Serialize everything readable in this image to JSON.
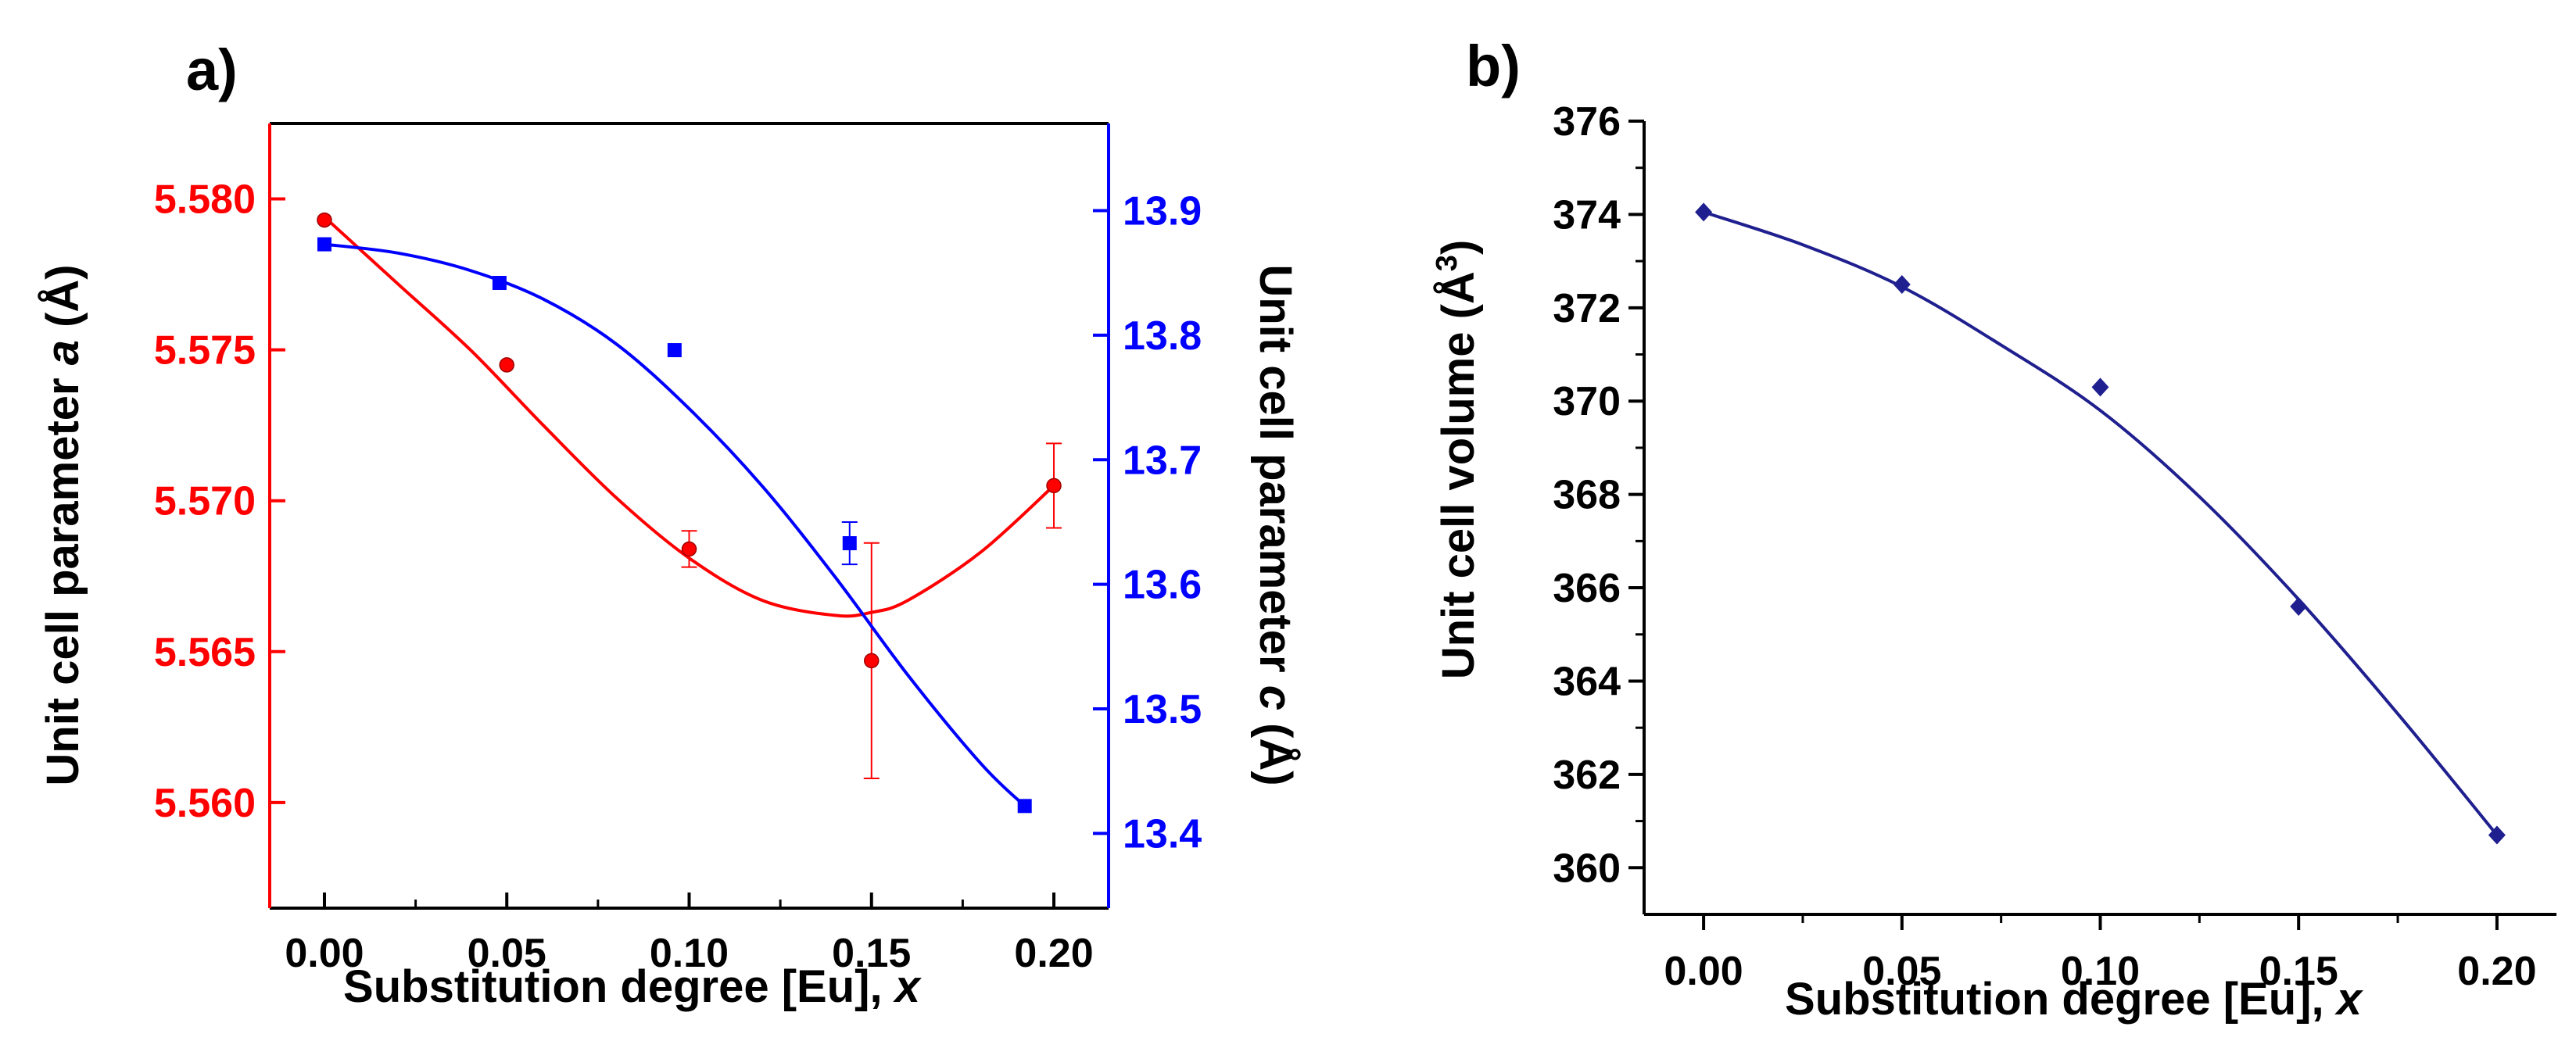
{
  "chart_data": [
    {
      "type": "line",
      "panel_label": "a)",
      "title": "",
      "xlabel": "Substitution degree [Eu], ",
      "xlabel_var": "x",
      "ylabel_left": {
        "pre": "Unit cell parameter ",
        "var": "a",
        "post": " (Å)"
      },
      "ylabel_right": {
        "pre": "Unit cell parameter ",
        "var": "c",
        "post": " (Å)"
      },
      "xlim": [
        -0.015,
        0.215
      ],
      "xticks": [
        "0.00",
        "0.05",
        "0.10",
        "0.15",
        "0.20"
      ],
      "ylim_left": [
        5.5565,
        5.5825
      ],
      "yticks_left": [
        "5.560",
        "5.565",
        "5.570",
        "5.575",
        "5.580"
      ],
      "ylim_right": [
        13.34,
        13.97
      ],
      "yticks_right": [
        "13.4",
        "13.5",
        "13.6",
        "13.7",
        "13.8",
        "13.9"
      ],
      "series": [
        {
          "name": "a",
          "axis": "left",
          "color": "#ff0000",
          "marker": "circle",
          "x": [
            0.0,
            0.05,
            0.1,
            0.15,
            0.2
          ],
          "values": [
            5.5793,
            5.5745,
            5.5684,
            5.5647,
            5.5705
          ],
          "errors": [
            0.0,
            0.0,
            0.0006,
            0.0039,
            0.0014
          ],
          "fit_x": [
            0.0,
            0.02,
            0.04,
            0.06,
            0.08,
            0.1,
            0.12,
            0.14,
            0.15,
            0.16,
            0.18,
            0.2
          ],
          "fit_y": [
            5.5794,
            5.5772,
            5.575,
            5.5725,
            5.5701,
            5.5681,
            5.5667,
            5.5662,
            5.5663,
            5.5667,
            5.5683,
            5.5705
          ]
        },
        {
          "name": "c",
          "axis": "right",
          "color": "#0000ff",
          "marker": "square",
          "x": [
            0.0,
            0.048,
            0.096,
            0.144,
            0.192
          ],
          "values": [
            13.873,
            13.842,
            13.788,
            13.633,
            13.422
          ],
          "errors": [
            0.0,
            0.0,
            0.0,
            0.017,
            0.0
          ],
          "fit_x": [
            0.0,
            0.02,
            0.04,
            0.06,
            0.08,
            0.1,
            0.12,
            0.14,
            0.16,
            0.18,
            0.192
          ],
          "fit_y": [
            13.873,
            13.866,
            13.852,
            13.829,
            13.793,
            13.741,
            13.679,
            13.606,
            13.527,
            13.456,
            13.422
          ]
        }
      ]
    },
    {
      "type": "line",
      "panel_label": "b)",
      "title": "",
      "xlabel": "Substitution degree [Eu], ",
      "xlabel_var": "x",
      "ylabel": {
        "pre": "Unit cell volume (Å",
        "sup": "3",
        "post": ")"
      },
      "xlim": [
        -0.015,
        0.215
      ],
      "xticks": [
        "0.00",
        "0.05",
        "0.10",
        "0.15",
        "0.20"
      ],
      "ylim": [
        359,
        376
      ],
      "yticks": [
        "360",
        "362",
        "364",
        "366",
        "368",
        "370",
        "372",
        "374",
        "376"
      ],
      "series": [
        {
          "name": "V",
          "color": "#1f1f8f",
          "marker": "diamond",
          "x": [
            0.0,
            0.05,
            0.1,
            0.15,
            0.2
          ],
          "values": [
            374.05,
            372.5,
            370.3,
            365.6,
            360.7
          ],
          "fit_x": [
            0.0,
            0.025,
            0.05,
            0.075,
            0.1,
            0.125,
            0.15,
            0.175,
            0.2
          ],
          "fit_y": [
            374.05,
            373.35,
            372.45,
            371.2,
            369.8,
            367.95,
            365.75,
            363.3,
            360.7
          ]
        }
      ]
    }
  ]
}
